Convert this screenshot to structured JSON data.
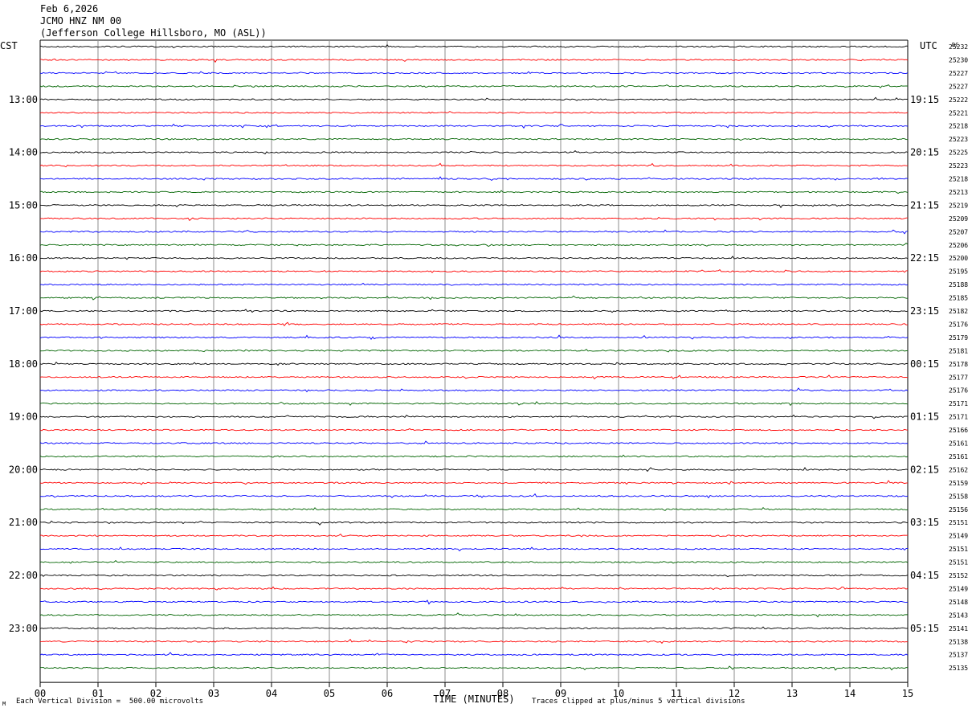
{
  "header": {
    "date": "Feb 6,2026",
    "station": "JCMO HNZ NM 00",
    "location": "(Jefferson College Hillsboro, MO (ASL))"
  },
  "labels": {
    "left_zone": "CST",
    "right_zone": "UTC",
    "dc_header": "DC"
  },
  "footer": {
    "scale_note": "Each Vertical Division =  500.00 microvolts",
    "clip_note": "Traces clipped at plus/minus 5 vertical divisions",
    "corner_mark": "M"
  },
  "chart_data": {
    "type": "line",
    "title": "",
    "xlabel": "TIME (MINUTES)",
    "xlim": [
      0,
      15
    ],
    "x_ticks": [
      "00",
      "01",
      "02",
      "03",
      "04",
      "05",
      "06",
      "07",
      "08",
      "09",
      "10",
      "11",
      "12",
      "13",
      "14",
      "15"
    ],
    "trace_colors": [
      "#000000",
      "#ff0000",
      "#0000ff",
      "#006400"
    ],
    "left_time_labels": [
      "13:00",
      "14:00",
      "15:00",
      "16:00",
      "17:00",
      "18:00",
      "19:00",
      "20:00",
      "21:00",
      "22:00",
      "23:00"
    ],
    "right_time_labels": [
      "19:15",
      "20:15",
      "21:15",
      "22:15",
      "23:15",
      "00:15",
      "01:15",
      "02:15",
      "03:15",
      "04:15",
      "05:15"
    ],
    "hour_label_rows": [
      4,
      8,
      12,
      16,
      20,
      24,
      28,
      32,
      36,
      40,
      44
    ],
    "dc_offsets": [
      "25232",
      "25230",
      "25227",
      "25227",
      "25222",
      "25221",
      "25218",
      "25223",
      "25225",
      "25223",
      "25218",
      "25213",
      "25219",
      "25209",
      "25207",
      "25206",
      "25200",
      "25195",
      "25188",
      "25185",
      "25182",
      "25176",
      "25179",
      "25181",
      "25178",
      "25177",
      "25176",
      "25171",
      "25171",
      "25166",
      "25161",
      "25161",
      "25162",
      "25159",
      "25158",
      "25156",
      "25151",
      "25149",
      "25151",
      "25151",
      "25152",
      "25149",
      "25148",
      "25143",
      "25141",
      "25138",
      "25137",
      "25135"
    ]
  }
}
